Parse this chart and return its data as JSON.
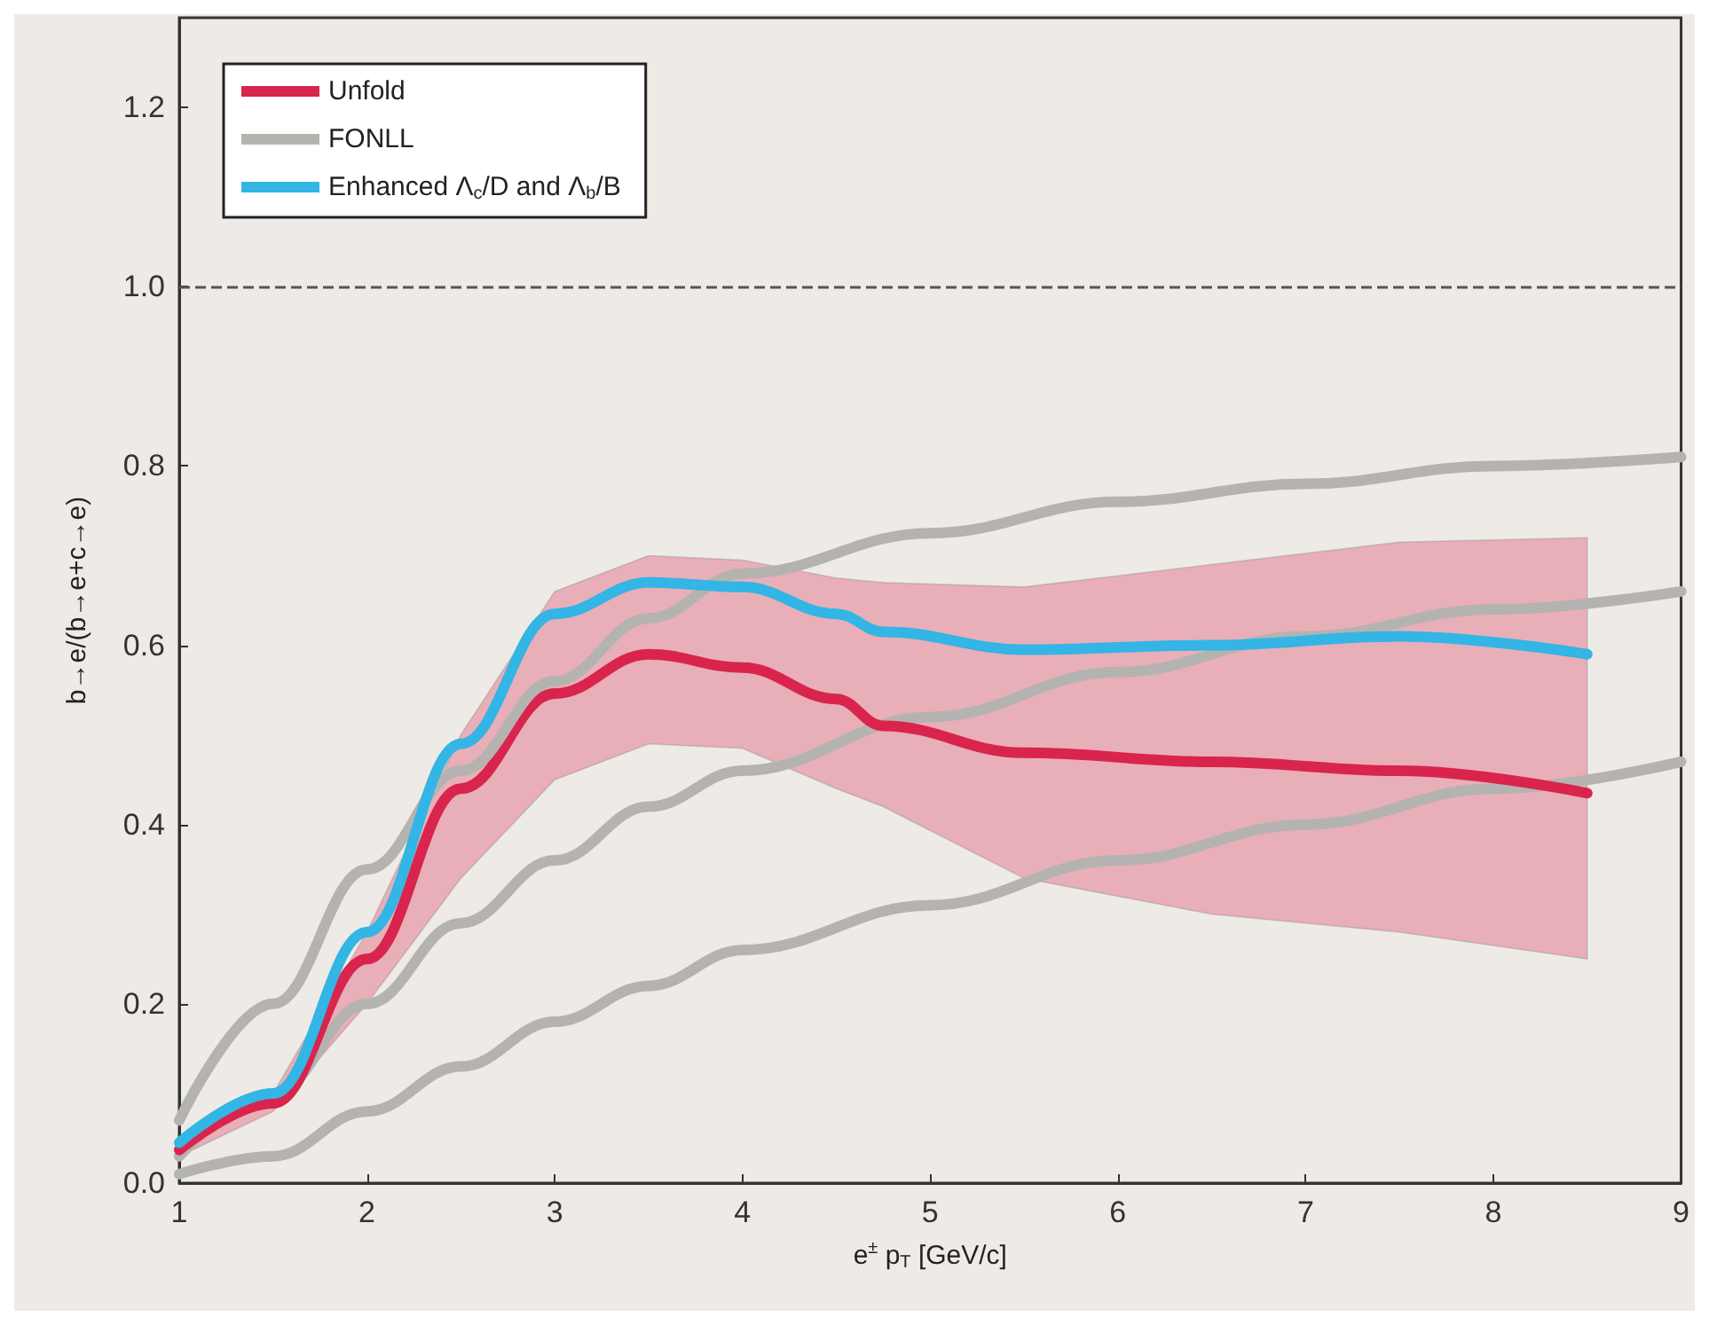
{
  "chart_data": {
    "type": "line",
    "xlabel": "e$^{±}$ p$_{T}$ [GeV/c]",
    "ylabel": "b→e/(b→e+c→e)",
    "xlim": [
      1,
      9
    ],
    "xticks": [
      1,
      2,
      3,
      4,
      5,
      6,
      7,
      8,
      9
    ],
    "ylim": [
      0,
      1.3
    ],
    "yticks": [
      {
        "value": 0,
        "label": "0.0"
      },
      0.2,
      0.4,
      0.6,
      0.8,
      {
        "value": 1,
        "label": "1.0"
      },
      1.2
    ],
    "grid": false,
    "legend": "top left",
    "marker": "none",
    "line_style": "solid",
    "ref_lines": [
      {
        "axis": "y",
        "value": 1,
        "color": "#555555",
        "line_style": "dashed"
      }
    ],
    "series": [
      {
        "name": "Unfold",
        "color": "#d9244e",
        "x": [
          1,
          1.5,
          2,
          2.5,
          3,
          3.5,
          4,
          4.5,
          4.75,
          5.5,
          6.5,
          7.5,
          8.5
        ],
        "values": [
          0.037,
          0.089,
          0.25,
          0.44,
          0.546,
          0.59,
          0.575,
          0.54,
          0.51,
          0.48,
          0.47,
          0.46,
          0.435
        ],
        "lower": [
          0.03,
          0.08,
          0.2,
          0.34,
          0.45,
          0.49,
          0.485,
          0.44,
          0.42,
          0.34,
          0.3,
          0.28,
          0.25
        ],
        "upper": [
          0.05,
          0.1,
          0.28,
          0.5,
          0.66,
          0.7,
          0.695,
          0.675,
          0.67,
          0.665,
          0.69,
          0.715,
          0.72
        ]
      },
      {
        "name": "FONLL",
        "color": "#b5b3b0",
        "x": [
          1,
          1.5,
          2,
          2.5,
          3,
          3.5,
          4,
          5,
          6,
          7,
          8,
          9
        ],
        "values": [
          0.07,
          0.2,
          0.35,
          0.46,
          0.56,
          0.63,
          0.68,
          0.725,
          0.76,
          0.78,
          0.8,
          0.81
        ]
      },
      {
        "color": "#b5b3b0",
        "x": [
          1,
          1.5,
          2,
          2.5,
          3,
          3.5,
          4,
          5,
          6,
          7,
          8,
          9
        ],
        "values": [
          0.03,
          0.1,
          0.2,
          0.29,
          0.36,
          0.42,
          0.46,
          0.52,
          0.57,
          0.61,
          0.64,
          0.66
        ]
      },
      {
        "color": "#b5b3b0",
        "x": [
          1,
          1.5,
          2,
          2.5,
          3,
          3.5,
          4,
          5,
          6,
          7,
          8,
          9
        ],
        "values": [
          0.01,
          0.03,
          0.08,
          0.13,
          0.18,
          0.22,
          0.26,
          0.31,
          0.36,
          0.4,
          0.44,
          0.47
        ]
      },
      {
        "name": "Enhanced Λ$_{c}$/D and Λ$_{b}$/B",
        "color": "#33b5e5",
        "x": [
          1,
          1.5,
          2,
          2.5,
          3,
          3.5,
          4,
          4.5,
          4.75,
          5.5,
          6.5,
          7.5,
          8.5
        ],
        "values": [
          0.045,
          0.1,
          0.28,
          0.49,
          0.635,
          0.67,
          0.665,
          0.635,
          0.615,
          0.595,
          0.6,
          0.61,
          0.59
        ]
      }
    ]
  }
}
